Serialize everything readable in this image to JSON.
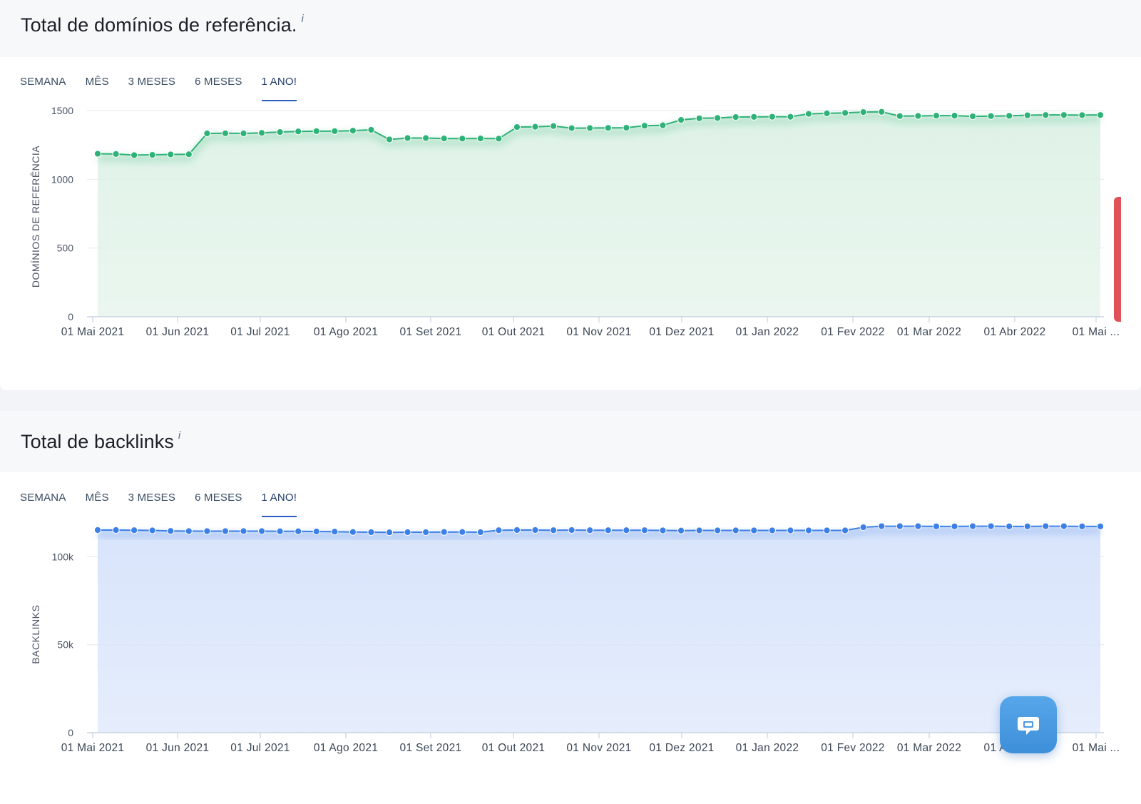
{
  "panels": [
    {
      "title": "Total de domínios de referência.",
      "info": "i",
      "tabs": [
        "SEMANA",
        "MÊS",
        "3 MESES",
        "6 MESES",
        "1 ANO!"
      ],
      "active_tab": "1 ANO!"
    },
    {
      "title": "Total de backlinks",
      "info": "i",
      "tabs": [
        "SEMANA",
        "MÊS",
        "3 MESES",
        "6 MESES",
        "1 ANO!"
      ],
      "active_tab": "1 ANO!"
    }
  ],
  "colors": {
    "green": "#2fb277",
    "green_fill": "#dff2e7",
    "blue": "#3c7fe6",
    "blue_fill": "#d8e4fb",
    "accent_tab": "#2a5fbf",
    "chat_button": "#4a9ae4"
  },
  "icons": {
    "chat": "chat-bubble-icon",
    "info": "info-icon"
  },
  "chart_data": [
    {
      "type": "area",
      "title": "Total de domínios de referência.",
      "xlabel": "",
      "ylabel": "DOMÍNIOS DE REFERÊNCIA",
      "ylim": [
        0,
        1500
      ],
      "yticks": [
        0,
        500,
        1000,
        1500
      ],
      "ytick_labels": [
        "0",
        "500",
        "1000",
        "1500"
      ],
      "x_tick_labels": [
        "01 Mai 2021",
        "01 Jun 2021",
        "01 Jul 2021",
        "01 Ago 2021",
        "01 Set 2021",
        "01 Out 2021",
        "01 Nov 2021",
        "01 Dez 2021",
        "01 Jan 2022",
        "01 Fev 2022",
        "01 Mar 2022",
        "01 Abr 2022",
        "01 Mai ..."
      ],
      "grid": true,
      "series": [
        {
          "values": [
            1186,
            1184,
            1176,
            1178,
            1181,
            1182,
            1334,
            1335,
            1334,
            1338,
            1344,
            1348,
            1350,
            1350,
            1354,
            1360,
            1290,
            1300,
            1300,
            1297,
            1296,
            1297,
            1296,
            1380,
            1382,
            1387,
            1372,
            1373,
            1374,
            1375,
            1390,
            1393,
            1432,
            1444,
            1446,
            1453,
            1454,
            1455,
            1455,
            1476,
            1480,
            1483,
            1489,
            1491,
            1460,
            1461,
            1463,
            1463,
            1458,
            1460,
            1462,
            1466,
            1468,
            1468,
            1467,
            1468
          ]
        }
      ]
    },
    {
      "type": "area",
      "title": "Total de backlinks",
      "xlabel": "",
      "ylabel": "BACKLINKS",
      "ylim": [
        0,
        115000
      ],
      "yticks": [
        0,
        50000,
        100000
      ],
      "ytick_labels": [
        "0",
        "50k",
        "100k"
      ],
      "x_tick_labels": [
        "01 Mai 2021",
        "01 Jun 2021",
        "01 Jul 2021",
        "01 Ago 2021",
        "01 Set 2021",
        "01 Out 2021",
        "01 Nov 2021",
        "01 Dez 2021",
        "01 Jan 2022",
        "01 Fev 2022",
        "01 Mar 2022",
        "01 Abr 2022",
        "01 Mai ..."
      ],
      "grid": true,
      "series": [
        {
          "values": [
            115200,
            115200,
            115100,
            115000,
            114700,
            114600,
            114600,
            114600,
            114600,
            114600,
            114500,
            114500,
            114400,
            114300,
            114100,
            114000,
            113900,
            114000,
            114000,
            114100,
            114100,
            114000,
            115100,
            115200,
            115200,
            115100,
            115200,
            115100,
            115100,
            115100,
            115100,
            115000,
            114900,
            115000,
            115000,
            115000,
            115000,
            115000,
            115000,
            115000,
            115000,
            115000,
            116800,
            117400,
            117400,
            117400,
            117300,
            117300,
            117400,
            117400,
            117300,
            117300,
            117400,
            117400,
            117300,
            117300
          ]
        }
      ]
    }
  ]
}
